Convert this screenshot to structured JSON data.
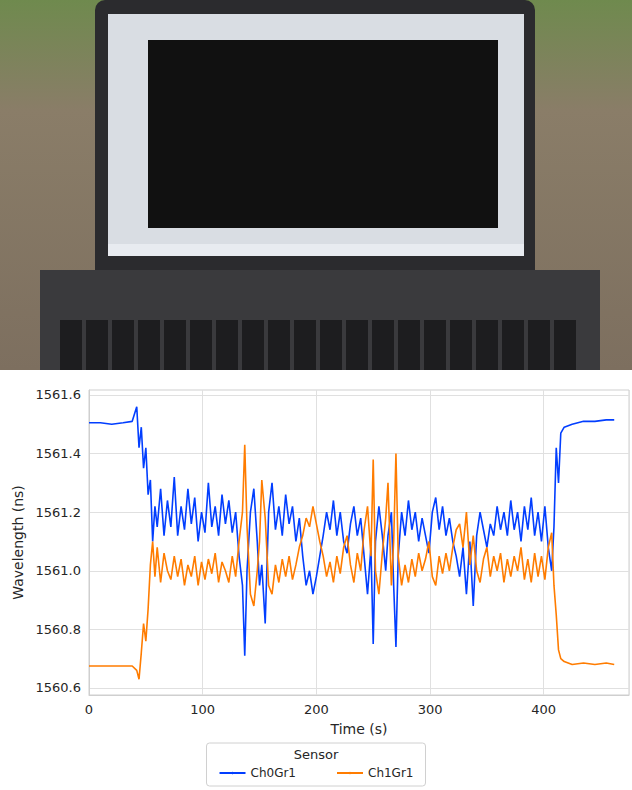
{
  "chart_data": {
    "type": "line",
    "x_label": "Time (s)",
    "y_label": "Wavelength (ns)",
    "legend_title": "Sensor",
    "x": [
      0,
      10,
      20,
      30,
      38,
      42,
      44,
      46,
      48,
      50,
      52,
      54,
      56,
      58,
      60,
      63,
      66,
      69,
      72,
      75,
      78,
      81,
      84,
      87,
      90,
      93,
      96,
      99,
      102,
      105,
      108,
      111,
      114,
      117,
      120,
      123,
      126,
      129,
      132,
      135,
      137,
      139,
      142,
      145,
      148,
      150,
      152,
      155,
      158,
      161,
      164,
      167,
      170,
      173,
      176,
      179,
      182,
      185,
      188,
      191,
      194,
      197,
      200,
      203,
      206,
      209,
      212,
      215,
      218,
      221,
      224,
      227,
      230,
      233,
      236,
      239,
      242,
      245,
      248,
      250,
      252,
      255,
      258,
      261,
      263,
      266,
      268,
      270,
      272,
      275,
      278,
      281,
      284,
      287,
      290,
      293,
      296,
      299,
      302,
      305,
      308,
      311,
      314,
      317,
      320,
      323,
      326,
      329,
      332,
      335,
      338,
      341,
      344,
      347,
      350,
      353,
      356,
      359,
      362,
      365,
      368,
      371,
      374,
      377,
      380,
      383,
      386,
      389,
      392,
      395,
      398,
      401,
      404,
      407,
      409,
      411,
      413,
      415,
      418,
      425,
      435,
      445,
      455,
      462
    ],
    "series": [
      {
        "name": "Ch0Gr1",
        "color": "#023eff",
        "values": [
          1561.505,
          1561.505,
          1561.5,
          1561.505,
          1561.51,
          1561.56,
          1561.42,
          1561.49,
          1561.35,
          1561.42,
          1561.26,
          1561.31,
          1561.1,
          1561.22,
          1561.15,
          1561.28,
          1561.12,
          1561.24,
          1561.15,
          1561.32,
          1561.12,
          1561.22,
          1561.14,
          1561.28,
          1561.16,
          1561.25,
          1561.1,
          1561.2,
          1561.13,
          1561.3,
          1561.15,
          1561.22,
          1561.12,
          1561.26,
          1561.16,
          1561.24,
          1561.13,
          1561.2,
          1561.05,
          1560.95,
          1560.71,
          1561.0,
          1561.2,
          1561.28,
          1561.1,
          1560.95,
          1561.02,
          1560.82,
          1561.2,
          1561.3,
          1561.14,
          1561.22,
          1561.12,
          1561.26,
          1561.16,
          1561.22,
          1561.1,
          1561.18,
          1561.05,
          1560.95,
          1561.0,
          1560.92,
          1560.98,
          1561.05,
          1561.12,
          1561.2,
          1561.14,
          1561.24,
          1561.12,
          1561.2,
          1561.1,
          1561.06,
          1561.16,
          1561.22,
          1561.12,
          1561.18,
          1561.05,
          1560.92,
          1561.08,
          1560.75,
          1561.1,
          1561.22,
          1561.12,
          1561.0,
          1561.12,
          1561.2,
          1560.95,
          1560.74,
          1561.05,
          1561.2,
          1561.12,
          1561.24,
          1561.14,
          1561.2,
          1561.1,
          1561.18,
          1561.12,
          1561.06,
          1561.2,
          1561.25,
          1561.14,
          1561.22,
          1561.12,
          1561.18,
          1561.1,
          1561.05,
          1560.98,
          1561.08,
          1560.92,
          1561.1,
          1560.88,
          1561.12,
          1561.2,
          1561.14,
          1561.08,
          1561.16,
          1561.12,
          1561.22,
          1561.14,
          1561.2,
          1561.12,
          1561.24,
          1561.14,
          1561.2,
          1561.1,
          1561.22,
          1561.14,
          1561.25,
          1561.12,
          1561.2,
          1561.1,
          1561.22,
          1561.08,
          1561.0,
          1561.15,
          1561.42,
          1561.3,
          1561.47,
          1561.49,
          1561.5,
          1561.51,
          1561.51,
          1561.515,
          1561.515
        ]
      },
      {
        "name": "Ch1Gr1",
        "color": "#ff7c00",
        "values": [
          1560.675,
          1560.675,
          1560.675,
          1560.675,
          1560.675,
          1560.66,
          1560.63,
          1560.72,
          1560.82,
          1560.76,
          1560.87,
          1561.02,
          1561.1,
          1560.98,
          1561.08,
          1560.96,
          1561.06,
          1561.0,
          1560.97,
          1561.05,
          1560.98,
          1561.04,
          1560.95,
          1561.02,
          1560.98,
          1561.05,
          1560.95,
          1561.03,
          1560.97,
          1561.04,
          1560.99,
          1561.06,
          1560.96,
          1561.03,
          1561.0,
          1560.96,
          1561.05,
          1560.98,
          1561.1,
          1561.2,
          1561.43,
          1561.15,
          1560.92,
          1560.88,
          1561.0,
          1561.1,
          1561.31,
          1561.18,
          1560.95,
          1560.92,
          1561.02,
          1560.96,
          1561.04,
          1560.98,
          1561.05,
          1560.97,
          1561.02,
          1561.08,
          1561.12,
          1561.18,
          1561.15,
          1561.22,
          1561.16,
          1561.1,
          1561.05,
          1560.98,
          1561.03,
          1560.96,
          1561.05,
          1560.99,
          1561.08,
          1561.12,
          1561.02,
          1560.96,
          1561.06,
          1561.0,
          1561.14,
          1561.22,
          1561.05,
          1561.38,
          1561.0,
          1560.92,
          1561.06,
          1561.18,
          1561.3,
          1560.95,
          1561.1,
          1561.4,
          1561.05,
          1560.95,
          1561.02,
          1560.96,
          1561.04,
          1560.98,
          1561.06,
          1561.0,
          1561.04,
          1561.1,
          1560.98,
          1560.95,
          1561.05,
          1560.99,
          1561.06,
          1561.0,
          1561.08,
          1561.14,
          1561.16,
          1561.08,
          1561.2,
          1561.02,
          1561.12,
          1561.0,
          1560.96,
          1561.04,
          1561.08,
          1560.98,
          1561.05,
          1561.0,
          1561.06,
          1560.96,
          1561.04,
          1560.98,
          1561.05,
          1561.0,
          1561.08,
          1560.97,
          1561.04,
          1560.96,
          1561.06,
          1560.98,
          1561.05,
          1560.97,
          1561.08,
          1561.13,
          1560.95,
          1560.85,
          1560.73,
          1560.7,
          1560.69,
          1560.68,
          1560.685,
          1560.68,
          1560.685,
          1560.68
        ]
      }
    ],
    "xlim": [
      0,
      475
    ],
    "xticks": [
      0,
      100,
      200,
      300,
      400
    ],
    "ylim": [
      1560.576,
      1561.617
    ],
    "yticks": [
      1560.6,
      1560.8,
      {
        "value": 1561,
        "label": "1561.0"
      },
      1561.2,
      1561.4,
      1561.6
    ],
    "grid": true,
    "legend": "bottom"
  }
}
